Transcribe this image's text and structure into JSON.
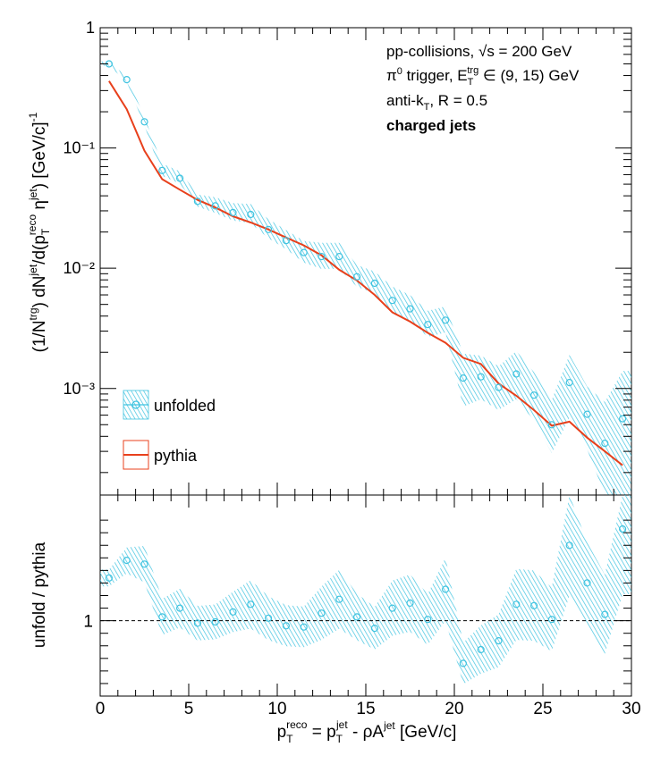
{
  "colors": {
    "unfolded": "#3ec3e0",
    "pythia": "#e8401c",
    "axis": "#000000"
  },
  "legend": {
    "unfolded": "unfolded",
    "pythia": "pythia"
  },
  "annotations": {
    "line1": "pp-collisions, √s = 200 GeV",
    "line2": "π⁰ trigger, E_T^trg ∈ (9, 15) GeV",
    "line3": "anti-k_T, R = 0.5",
    "line4": "charged jets"
  },
  "chart_data": [
    {
      "type": "scatter",
      "panel": "top",
      "scale_y": "log",
      "ylabel": "(1/N^trg) dN^jet/d(p_T^reco η^jet) [GeV/c]^-1",
      "xlim": [
        0,
        30
      ],
      "ylim": [
        0.00013,
        1
      ],
      "y_tick_labels": [
        "1",
        "10⁻¹",
        "10⁻²",
        "10⁻³"
      ],
      "x": [
        0.5,
        1.5,
        2.5,
        3.5,
        4.5,
        5.5,
        6.5,
        7.5,
        8.5,
        9.5,
        10.5,
        11.5,
        12.5,
        13.5,
        14.5,
        15.5,
        16.5,
        17.5,
        18.5,
        19.5,
        20.5,
        21.5,
        22.5,
        23.5,
        24.5,
        25.5,
        26.5,
        27.5,
        28.5,
        29.5
      ],
      "series": [
        {
          "name": "unfolded",
          "style": "markers_with_hatched_band",
          "values": [
            0.5,
            0.37,
            0.165,
            0.065,
            0.056,
            0.036,
            0.033,
            0.029,
            0.028,
            0.021,
            0.017,
            0.0135,
            0.0125,
            0.0125,
            0.0085,
            0.0075,
            0.0054,
            0.0046,
            0.0034,
            0.0037,
            0.00122,
            0.00125,
            0.00102,
            0.00132,
            0.00088,
            0.0005,
            0.00112,
            0.00061,
            0.00035,
            0.00056
          ],
          "band_rel": [
            0.05,
            0.06,
            0.1,
            0.14,
            0.14,
            0.14,
            0.18,
            0.2,
            0.22,
            0.22,
            0.22,
            0.25,
            0.3,
            0.3,
            0.25,
            0.25,
            0.3,
            0.3,
            0.3,
            0.3,
            0.6,
            0.5,
            0.5,
            0.55,
            0.55,
            0.6,
            0.7,
            0.7,
            1.2,
            1.5
          ]
        },
        {
          "name": "pythia",
          "style": "line",
          "values": [
            0.36,
            0.21,
            0.095,
            0.055,
            0.045,
            0.037,
            0.032,
            0.027,
            0.024,
            0.021,
            0.018,
            0.0155,
            0.0128,
            0.0097,
            0.0079,
            0.006,
            0.0043,
            0.0036,
            0.0029,
            0.0024,
            0.0018,
            0.0016,
            0.0011,
            0.00087,
            0.00066,
            0.00049,
            0.00053,
            0.00039,
            0.0003,
            0.00023
          ]
        }
      ]
    },
    {
      "type": "scatter",
      "panel": "bottom",
      "ylabel": "unfold / pythia",
      "xlabel": "p_T^reco = p_T^jet - ρA^jet [GeV/c]",
      "xlim": [
        0,
        30
      ],
      "ylim": [
        0.4,
        2.0
      ],
      "reference_line": 1,
      "x_tick_labels": [
        "0",
        "5",
        "10",
        "15",
        "20",
        "25",
        "30"
      ],
      "y_tick_labels": [
        "1"
      ],
      "x": [
        0.5,
        1.5,
        2.5,
        3.5,
        4.5,
        5.5,
        6.5,
        7.5,
        8.5,
        9.5,
        10.5,
        11.5,
        12.5,
        13.5,
        14.5,
        15.5,
        16.5,
        17.5,
        18.5,
        19.5,
        20.5,
        21.5,
        22.5,
        23.5,
        24.5,
        25.5,
        26.5,
        27.5,
        28.5,
        29.5
      ],
      "series": [
        {
          "name": "unfolded",
          "style": "markers_with_hatched_band",
          "values": [
            1.34,
            1.48,
            1.45,
            1.03,
            1.1,
            0.98,
            0.99,
            1.07,
            1.13,
            1.02,
            0.96,
            0.95,
            1.06,
            1.17,
            1.03,
            0.94,
            1.1,
            1.14,
            1.01,
            1.25,
            0.66,
            0.77,
            0.84,
            1.13,
            1.12,
            1.01,
            1.6,
            1.3,
            1.05,
            1.73
          ],
          "band_rel": [
            0.05,
            0.07,
            0.1,
            0.14,
            0.14,
            0.14,
            0.14,
            0.15,
            0.17,
            0.17,
            0.17,
            0.17,
            0.2,
            0.2,
            0.18,
            0.18,
            0.2,
            0.2,
            0.2,
            0.2,
            0.25,
            0.25,
            0.25,
            0.25,
            0.25,
            0.25,
            0.25,
            0.25,
            0.3,
            0.3
          ]
        }
      ]
    }
  ]
}
